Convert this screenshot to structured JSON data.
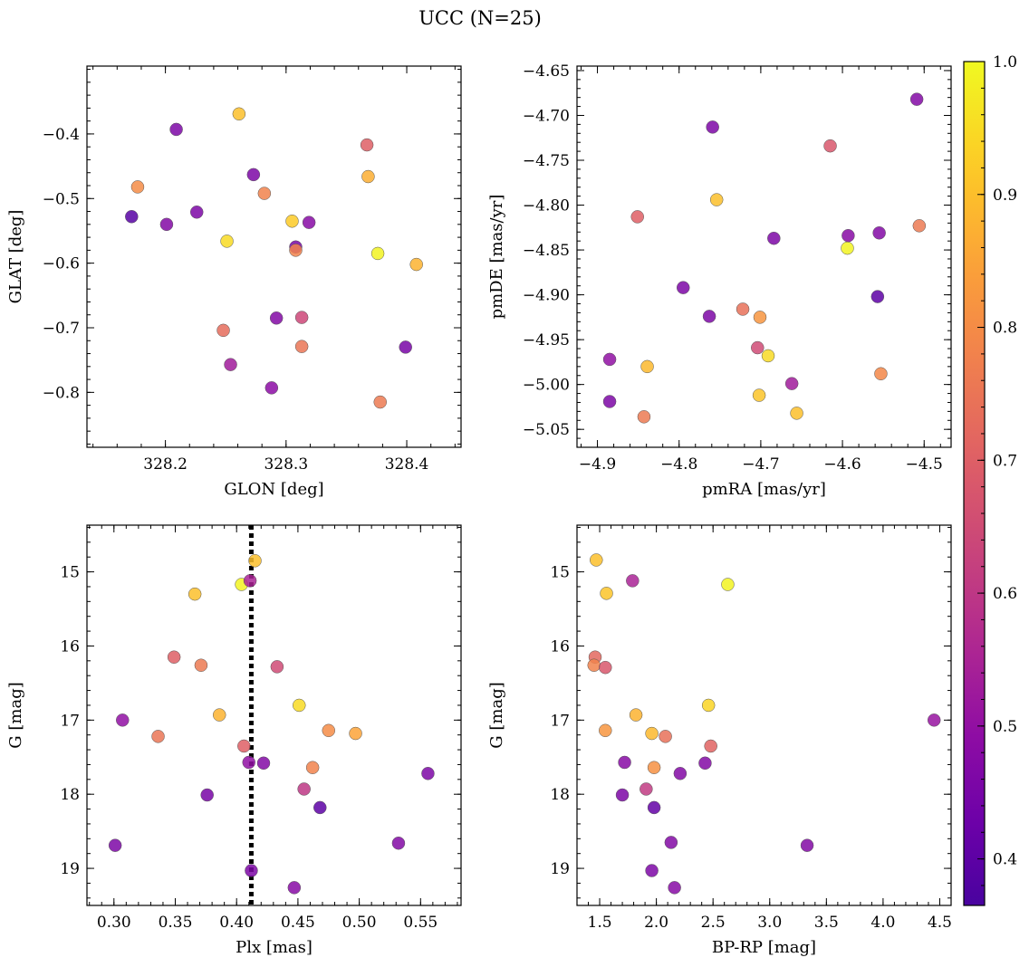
{
  "figure_title": "UCC (N=25)",
  "colorbar": {
    "range": [
      0.365,
      1.0
    ],
    "ticks": [
      0.4,
      0.5,
      0.6,
      0.7,
      0.8,
      0.9,
      1.0
    ],
    "tick_labels": [
      "0.4",
      "0.5",
      "0.6",
      "0.7",
      "0.8",
      "0.9",
      "1.0"
    ],
    "colormap": "plasma"
  },
  "chart_data": [
    {
      "type": "scatter",
      "xlabel": "GLON [deg]",
      "ylabel": "GLAT [deg]",
      "xlim": [
        328.135,
        328.445
      ],
      "ylim": [
        -0.885,
        -0.295
      ],
      "xticks": [
        328.2,
        328.3,
        328.4
      ],
      "xtick_labels": [
        "328.2",
        "328.3",
        "328.4"
      ],
      "yticks": [
        -0.8,
        -0.7,
        -0.6,
        -0.5,
        -0.4
      ],
      "ytick_labels": [
        "−0.8",
        "−0.7",
        "−0.6",
        "−0.5",
        "−0.4"
      ],
      "points": [
        {
          "x": 328.172,
          "y": -0.528,
          "c": 0.39
        },
        {
          "x": 328.177,
          "y": -0.482,
          "c": 0.8
        },
        {
          "x": 328.201,
          "y": -0.54,
          "c": 0.47
        },
        {
          "x": 328.209,
          "y": -0.393,
          "c": 0.46
        },
        {
          "x": 328.226,
          "y": -0.521,
          "c": 0.46
        },
        {
          "x": 328.248,
          "y": -0.704,
          "c": 0.73
        },
        {
          "x": 328.251,
          "y": -0.566,
          "c": 0.95
        },
        {
          "x": 328.254,
          "y": -0.757,
          "c": 0.53
        },
        {
          "x": 328.261,
          "y": -0.369,
          "c": 0.9
        },
        {
          "x": 328.273,
          "y": -0.463,
          "c": 0.46
        },
        {
          "x": 328.282,
          "y": -0.492,
          "c": 0.78
        },
        {
          "x": 328.288,
          "y": -0.793,
          "c": 0.49
        },
        {
          "x": 328.292,
          "y": -0.685,
          "c": 0.47
        },
        {
          "x": 328.305,
          "y": -0.535,
          "c": 0.92
        },
        {
          "x": 328.308,
          "y": -0.575,
          "c": 0.45
        },
        {
          "x": 328.308,
          "y": -0.58,
          "c": 0.78
        },
        {
          "x": 328.313,
          "y": -0.684,
          "c": 0.64
        },
        {
          "x": 328.313,
          "y": -0.729,
          "c": 0.75
        },
        {
          "x": 328.319,
          "y": -0.537,
          "c": 0.48
        },
        {
          "x": 328.367,
          "y": -0.417,
          "c": 0.7
        },
        {
          "x": 328.368,
          "y": -0.466,
          "c": 0.87
        },
        {
          "x": 328.376,
          "y": -0.585,
          "c": 0.99
        },
        {
          "x": 328.378,
          "y": -0.815,
          "c": 0.76
        },
        {
          "x": 328.399,
          "y": -0.73,
          "c": 0.45
        },
        {
          "x": 328.408,
          "y": -0.602,
          "c": 0.88
        }
      ]
    },
    {
      "type": "scatter",
      "xlabel": "pmRA [mas/yr]",
      "ylabel": "pmDE [mas/yr]",
      "xlim": [
        -4.925,
        -4.467
      ],
      "ylim": [
        -5.07,
        -4.645
      ],
      "xticks": [
        -4.9,
        -4.8,
        -4.7,
        -4.6,
        -4.5
      ],
      "xtick_labels": [
        "−4.9",
        "−4.8",
        "−4.7",
        "−4.6",
        "−4.5"
      ],
      "yticks": [
        -5.05,
        -5.0,
        -4.95,
        -4.9,
        -4.85,
        -4.8,
        -4.75,
        -4.7,
        -4.65
      ],
      "ytick_labels": [
        "−5.05",
        "−5.00",
        "−4.95",
        "−4.90",
        "−4.85",
        "−4.80",
        "−4.75",
        "−4.70",
        "−4.65"
      ],
      "points": [
        {
          "x": -4.885,
          "y": -4.972,
          "c": 0.5
        },
        {
          "x": -4.885,
          "y": -5.019,
          "c": 0.46
        },
        {
          "x": -4.851,
          "y": -4.813,
          "c": 0.7
        },
        {
          "x": -4.843,
          "y": -5.036,
          "c": 0.76
        },
        {
          "x": -4.839,
          "y": -4.98,
          "c": 0.89
        },
        {
          "x": -4.795,
          "y": -4.892,
          "c": 0.46
        },
        {
          "x": -4.763,
          "y": -4.924,
          "c": 0.46
        },
        {
          "x": -4.759,
          "y": -4.713,
          "c": 0.46
        },
        {
          "x": -4.754,
          "y": -4.794,
          "c": 0.9
        },
        {
          "x": -4.722,
          "y": -4.916,
          "c": 0.74
        },
        {
          "x": -4.704,
          "y": -4.959,
          "c": 0.65
        },
        {
          "x": -4.702,
          "y": -5.012,
          "c": 0.91
        },
        {
          "x": -4.701,
          "y": -4.925,
          "c": 0.82
        },
        {
          "x": -4.691,
          "y": -4.968,
          "c": 0.95
        },
        {
          "x": -4.684,
          "y": -4.837,
          "c": 0.46
        },
        {
          "x": -4.662,
          "y": -4.999,
          "c": 0.53
        },
        {
          "x": -4.656,
          "y": -5.032,
          "c": 0.9
        },
        {
          "x": -4.615,
          "y": -4.734,
          "c": 0.68
        },
        {
          "x": -4.594,
          "y": -4.848,
          "c": 0.99
        },
        {
          "x": -4.593,
          "y": -4.834,
          "c": 0.48
        },
        {
          "x": -4.557,
          "y": -4.902,
          "c": 0.4
        },
        {
          "x": -4.555,
          "y": -4.831,
          "c": 0.47
        },
        {
          "x": -4.553,
          "y": -4.988,
          "c": 0.79
        },
        {
          "x": -4.509,
          "y": -4.682,
          "c": 0.47
        },
        {
          "x": -4.506,
          "y": -4.823,
          "c": 0.76
        }
      ]
    },
    {
      "type": "scatter",
      "xlabel": "Plx [mas]",
      "ylabel": "G [mag]",
      "xlim": [
        0.278,
        0.583
      ],
      "ylim": [
        19.5,
        14.37
      ],
      "yinverted": true,
      "xticks": [
        0.3,
        0.35,
        0.4,
        0.45,
        0.5,
        0.55
      ],
      "xtick_labels": [
        "0.30",
        "0.35",
        "0.40",
        "0.45",
        "0.50",
        "0.55"
      ],
      "yticks": [
        15,
        16,
        17,
        18,
        19
      ],
      "ytick_labels": [
        "15",
        "16",
        "17",
        "18",
        "19"
      ],
      "vline": {
        "x": 0.412,
        "style": "dotted"
      },
      "points": [
        {
          "x": 0.301,
          "y": 18.69,
          "c": 0.46
        },
        {
          "x": 0.307,
          "y": 17.0,
          "c": 0.5
        },
        {
          "x": 0.336,
          "y": 17.22,
          "c": 0.75
        },
        {
          "x": 0.349,
          "y": 16.15,
          "c": 0.7
        },
        {
          "x": 0.366,
          "y": 15.3,
          "c": 0.9
        },
        {
          "x": 0.371,
          "y": 16.26,
          "c": 0.76
        },
        {
          "x": 0.376,
          "y": 18.01,
          "c": 0.45
        },
        {
          "x": 0.386,
          "y": 16.93,
          "c": 0.88
        },
        {
          "x": 0.404,
          "y": 15.17,
          "c": 0.99
        },
        {
          "x": 0.406,
          "y": 17.35,
          "c": 0.7
        },
        {
          "x": 0.41,
          "y": 17.57,
          "c": 0.5
        },
        {
          "x": 0.411,
          "y": 15.12,
          "c": 0.55
        },
        {
          "x": 0.412,
          "y": 19.03,
          "c": 0.46
        },
        {
          "x": 0.415,
          "y": 14.85,
          "c": 0.9
        },
        {
          "x": 0.422,
          "y": 17.58,
          "c": 0.47
        },
        {
          "x": 0.433,
          "y": 16.28,
          "c": 0.65
        },
        {
          "x": 0.447,
          "y": 19.26,
          "c": 0.48
        },
        {
          "x": 0.451,
          "y": 16.8,
          "c": 0.95
        },
        {
          "x": 0.455,
          "y": 17.93,
          "c": 0.6
        },
        {
          "x": 0.462,
          "y": 17.64,
          "c": 0.78
        },
        {
          "x": 0.468,
          "y": 18.18,
          "c": 0.4
        },
        {
          "x": 0.475,
          "y": 17.14,
          "c": 0.8
        },
        {
          "x": 0.497,
          "y": 17.18,
          "c": 0.85
        },
        {
          "x": 0.532,
          "y": 18.66,
          "c": 0.47
        },
        {
          "x": 0.556,
          "y": 17.72,
          "c": 0.46
        }
      ]
    },
    {
      "type": "scatter",
      "xlabel": "BP-RP [mag]",
      "ylabel": "G [mag]",
      "xlim": [
        1.3,
        4.6
      ],
      "ylim": [
        19.5,
        14.37
      ],
      "yinverted": true,
      "xticks": [
        1.5,
        2.0,
        2.5,
        3.0,
        3.5,
        4.0,
        4.5
      ],
      "xtick_labels": [
        "1.5",
        "2.0",
        "2.5",
        "3.0",
        "3.5",
        "4.0",
        "4.5"
      ],
      "yticks": [
        15,
        16,
        17,
        18,
        19
      ],
      "ytick_labels": [
        "15",
        "16",
        "17",
        "18",
        "19"
      ],
      "points": [
        {
          "x": 1.47,
          "y": 14.84,
          "c": 0.9
        },
        {
          "x": 1.46,
          "y": 16.15,
          "c": 0.72
        },
        {
          "x": 1.45,
          "y": 16.26,
          "c": 0.78
        },
        {
          "x": 1.56,
          "y": 15.29,
          "c": 0.91
        },
        {
          "x": 1.55,
          "y": 16.29,
          "c": 0.68
        },
        {
          "x": 1.55,
          "y": 17.14,
          "c": 0.82
        },
        {
          "x": 1.72,
          "y": 17.57,
          "c": 0.48
        },
        {
          "x": 1.7,
          "y": 18.01,
          "c": 0.46
        },
        {
          "x": 1.79,
          "y": 15.12,
          "c": 0.55
        },
        {
          "x": 1.82,
          "y": 16.93,
          "c": 0.88
        },
        {
          "x": 1.91,
          "y": 17.93,
          "c": 0.61
        },
        {
          "x": 1.96,
          "y": 17.18,
          "c": 0.89
        },
        {
          "x": 1.98,
          "y": 17.64,
          "c": 0.81
        },
        {
          "x": 1.98,
          "y": 18.18,
          "c": 0.41
        },
        {
          "x": 1.96,
          "y": 19.03,
          "c": 0.46
        },
        {
          "x": 2.08,
          "y": 17.22,
          "c": 0.74
        },
        {
          "x": 2.13,
          "y": 18.65,
          "c": 0.47
        },
        {
          "x": 2.16,
          "y": 19.26,
          "c": 0.48
        },
        {
          "x": 2.21,
          "y": 17.72,
          "c": 0.47
        },
        {
          "x": 2.43,
          "y": 17.58,
          "c": 0.47
        },
        {
          "x": 2.46,
          "y": 16.8,
          "c": 0.94
        },
        {
          "x": 2.48,
          "y": 17.35,
          "c": 0.71
        },
        {
          "x": 2.63,
          "y": 15.17,
          "c": 0.99
        },
        {
          "x": 3.33,
          "y": 18.69,
          "c": 0.47
        },
        {
          "x": 4.45,
          "y": 17.0,
          "c": 0.51
        }
      ]
    }
  ]
}
